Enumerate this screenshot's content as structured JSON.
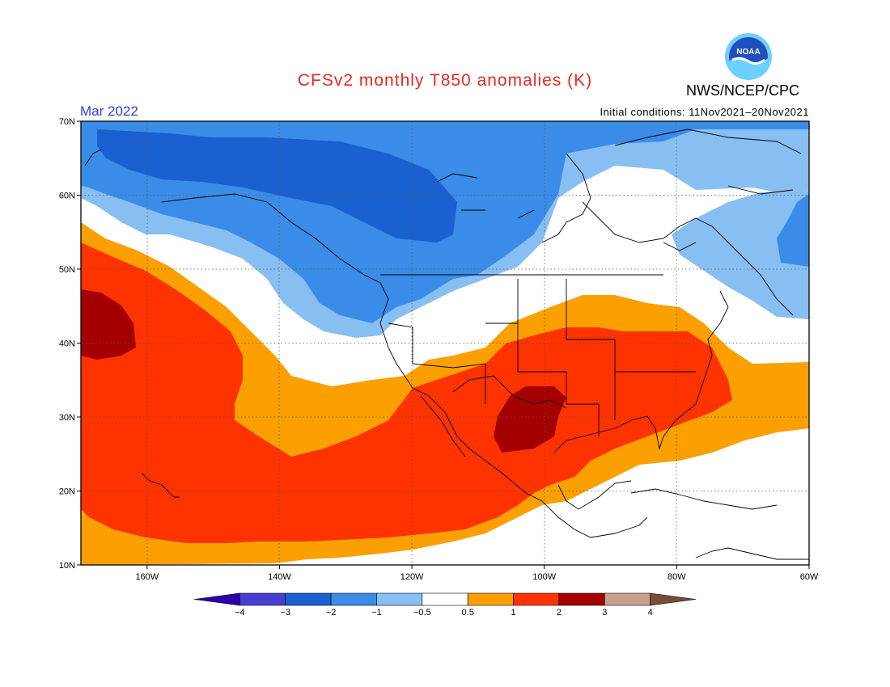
{
  "header": {
    "title": "CFSv2 monthly T850 anomalies (K)",
    "month": "Mar 2022",
    "initial_conditions": "Initial conditions: 11Nov2021–20Nov2021",
    "agency": "NWS/NCEP/CPC",
    "logo_text": "NOAA"
  },
  "map": {
    "lon_range": [
      -170,
      -60
    ],
    "lat_range": [
      10,
      70
    ],
    "lat_ticks": [
      {
        "v": 70,
        "label": "70N"
      },
      {
        "v": 60,
        "label": "60N"
      },
      {
        "v": 50,
        "label": "50N"
      },
      {
        "v": 40,
        "label": "40N"
      },
      {
        "v": 30,
        "label": "30N"
      },
      {
        "v": 20,
        "label": "20N"
      },
      {
        "v": 10,
        "label": "10N"
      }
    ],
    "lon_ticks": [
      {
        "v": -160,
        "label": "160W"
      },
      {
        "v": -140,
        "label": "140W"
      },
      {
        "v": -120,
        "label": "120W"
      },
      {
        "v": -100,
        "label": "100W"
      },
      {
        "v": -80,
        "label": "80W"
      },
      {
        "v": -60,
        "label": "60W"
      }
    ],
    "colors": {
      "n3": "#1a60d0",
      "n2": "#3a8ce8",
      "n1": "#88bff2",
      "zero": "#ffffff",
      "p05": "#fba000",
      "p1": "#ff3300",
      "p2": "#a50000"
    }
  },
  "legend": {
    "colors": [
      "#2a00a8",
      "#4a3dd0",
      "#1a60d0",
      "#3a8ce8",
      "#88bff2",
      "#ffffff",
      "#fba000",
      "#ff3300",
      "#a50000",
      "#c8a090",
      "#7a4a3a"
    ],
    "ticks": [
      "-4",
      "-3",
      "-2",
      "-1",
      "-0.5",
      "0.5",
      "1",
      "2",
      "3",
      "4"
    ]
  }
}
